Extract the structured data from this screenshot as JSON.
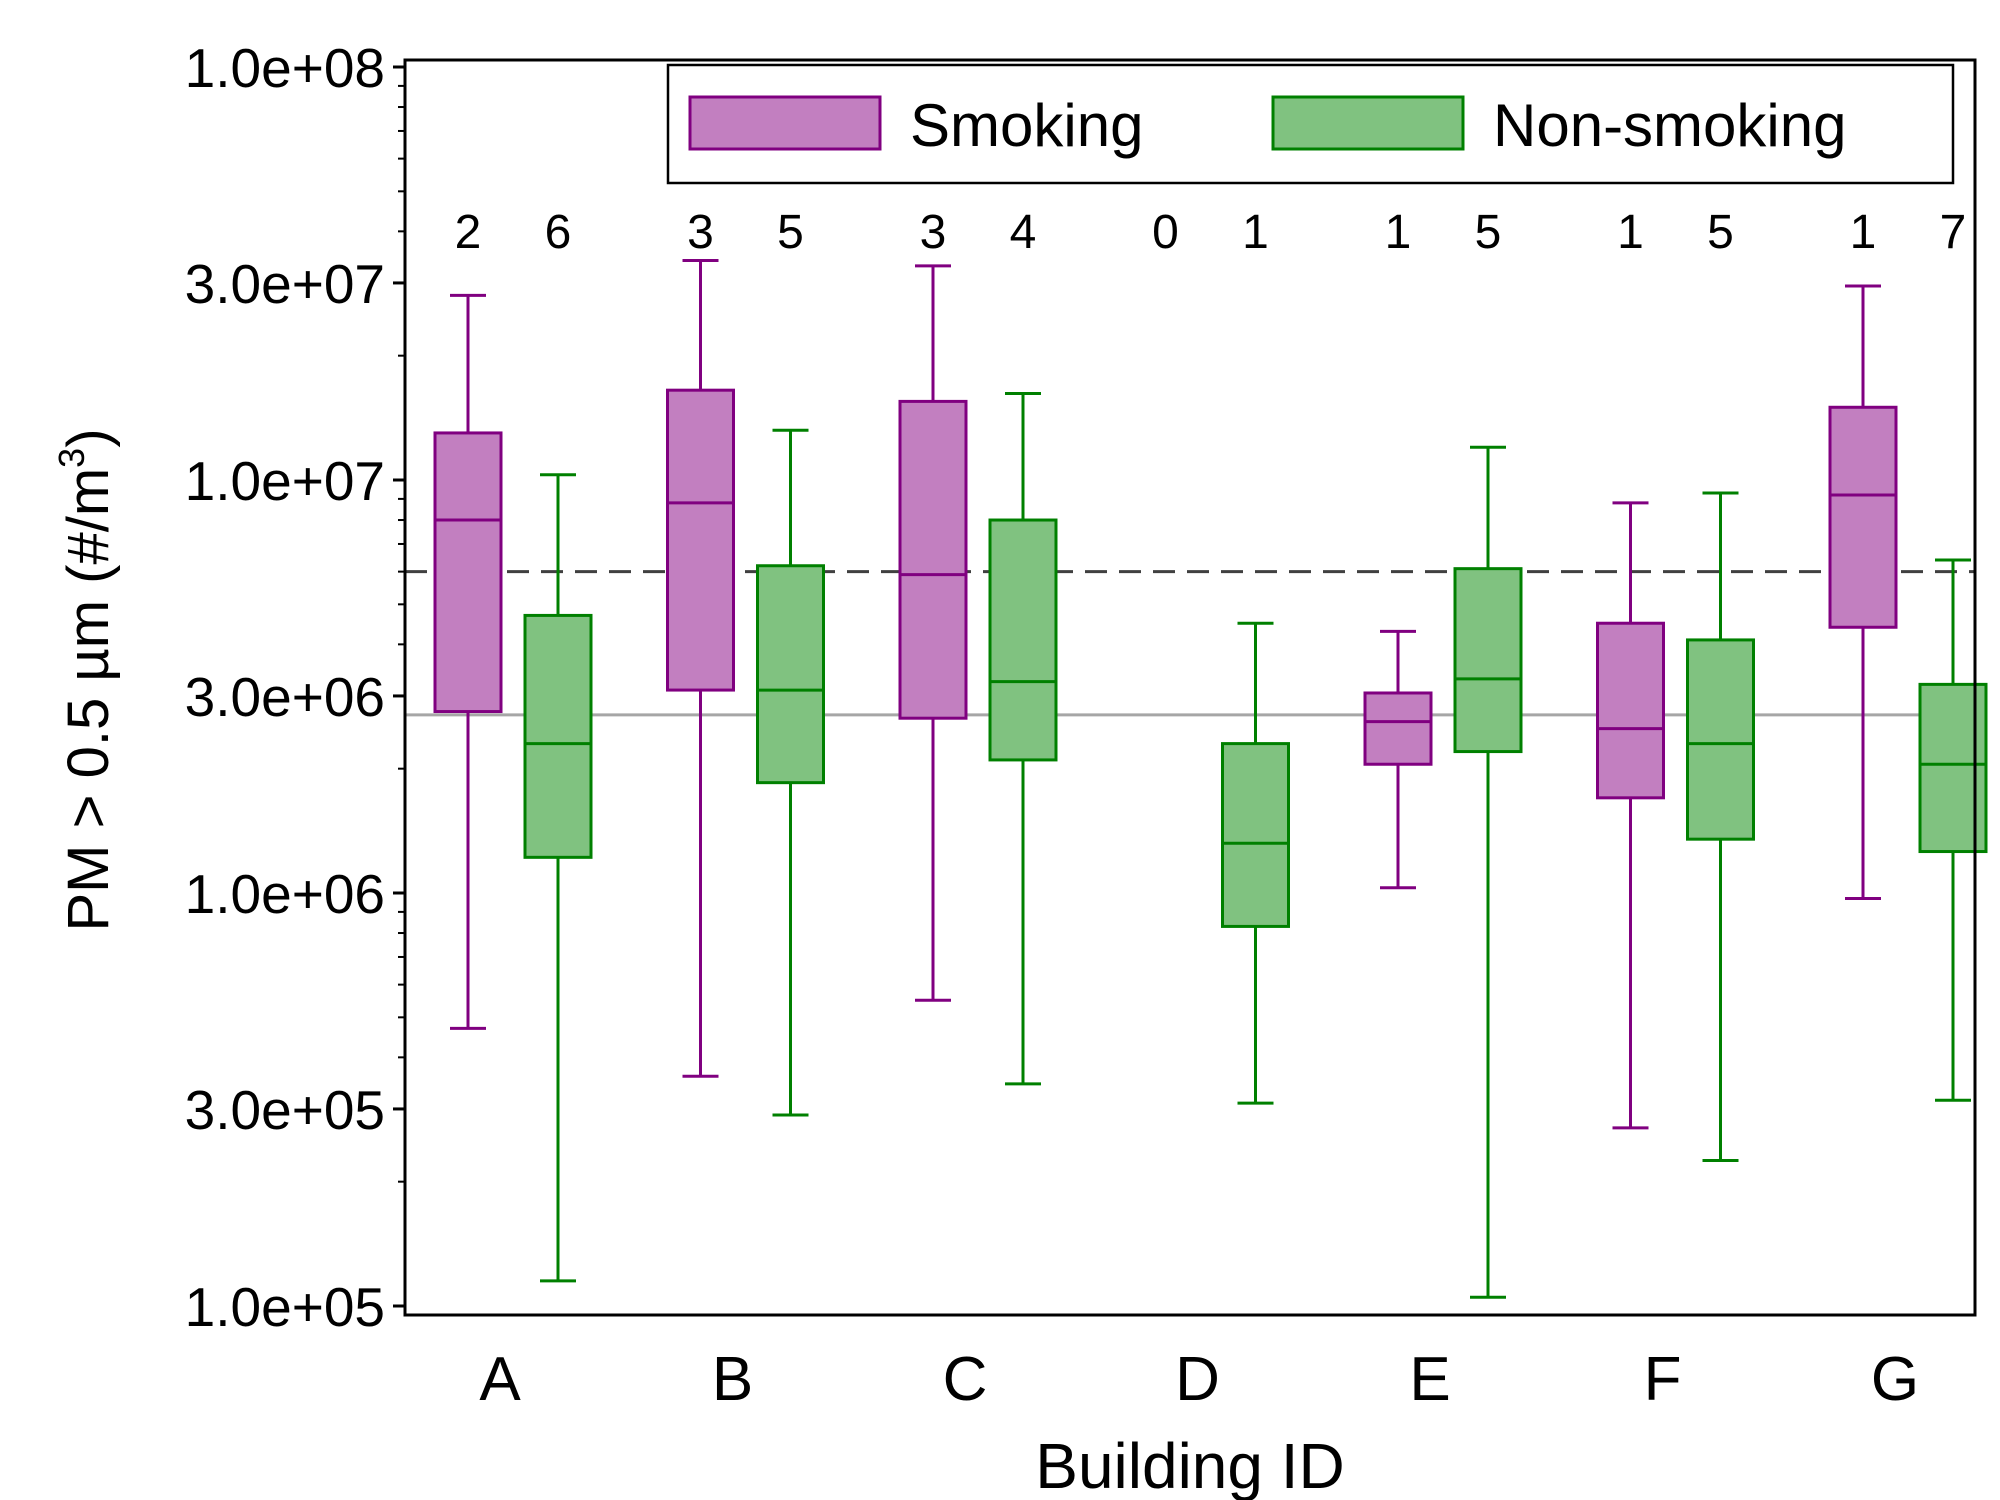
{
  "chart_data": {
    "type": "box",
    "xlabel": "Building ID",
    "ylabel": "PM > 0.5 µm (#/m",
    "ylabel_superscript": "3",
    "ylabel_close": ")",
    "yscale": "log",
    "ylim": [
      90000,
      110000000
    ],
    "y_ticks": [
      100000,
      300000,
      1000000,
      3000000,
      10000000,
      30000000,
      100000000
    ],
    "y_tick_labels": [
      "1.0e+05",
      "3.0e+05",
      "1.0e+06",
      "3.0e+06",
      "1.0e+07",
      "3.0e+07",
      "1.0e+08"
    ],
    "categories": [
      "A",
      "B",
      "C",
      "D",
      "E",
      "F",
      "G"
    ],
    "legend_position": "top-right",
    "reference_lines": [
      {
        "value": 6000000,
        "style": "dashed",
        "color": "#404040"
      },
      {
        "value": 2700000,
        "style": "solid",
        "color": "#a6a6a6"
      }
    ],
    "series": [
      {
        "name": "Smoking",
        "fill": "#c27fc0",
        "stroke": "#800080",
        "counts": [
          2,
          3,
          3,
          0,
          1,
          1,
          1
        ],
        "boxes": [
          {
            "min": 470000,
            "q1": 2750000,
            "median": 8000000,
            "q3": 13000000,
            "max": 28000000
          },
          {
            "min": 360000,
            "q1": 3100000,
            "median": 8800000,
            "q3": 16500000,
            "max": 34000000
          },
          {
            "min": 550000,
            "q1": 2650000,
            "median": 5900000,
            "q3": 15500000,
            "max": 33000000
          },
          null,
          {
            "min": 1030000,
            "q1": 2050000,
            "median": 2600000,
            "q3": 3050000,
            "max": 4300000
          },
          {
            "min": 270000,
            "q1": 1700000,
            "median": 2500000,
            "q3": 4500000,
            "max": 8800000
          },
          {
            "min": 970000,
            "q1": 4400000,
            "median": 9200000,
            "q3": 15000000,
            "max": 29500000
          }
        ]
      },
      {
        "name": "Non-smoking",
        "fill": "#80c280",
        "stroke": "#008000",
        "counts": [
          6,
          5,
          4,
          1,
          5,
          5,
          7
        ],
        "boxes": [
          {
            "min": 115000,
            "q1": 1220000,
            "median": 2300000,
            "q3": 4700000,
            "max": 10300000
          },
          {
            "min": 290000,
            "q1": 1850000,
            "median": 3100000,
            "q3": 6200000,
            "max": 13200000
          },
          {
            "min": 345000,
            "q1": 2100000,
            "median": 3250000,
            "q3": 8000000,
            "max": 16200000
          },
          {
            "min": 310000,
            "q1": 830000,
            "median": 1320000,
            "q3": 2300000,
            "max": 4500000
          },
          {
            "min": 105000,
            "q1": 2200000,
            "median": 3300000,
            "q3": 6100000,
            "max": 12000000
          },
          {
            "min": 225000,
            "q1": 1350000,
            "median": 2300000,
            "q3": 4100000,
            "max": 9300000
          },
          {
            "min": 315000,
            "q1": 1260000,
            "median": 2050000,
            "q3": 3200000,
            "max": 6400000
          }
        ]
      }
    ]
  }
}
